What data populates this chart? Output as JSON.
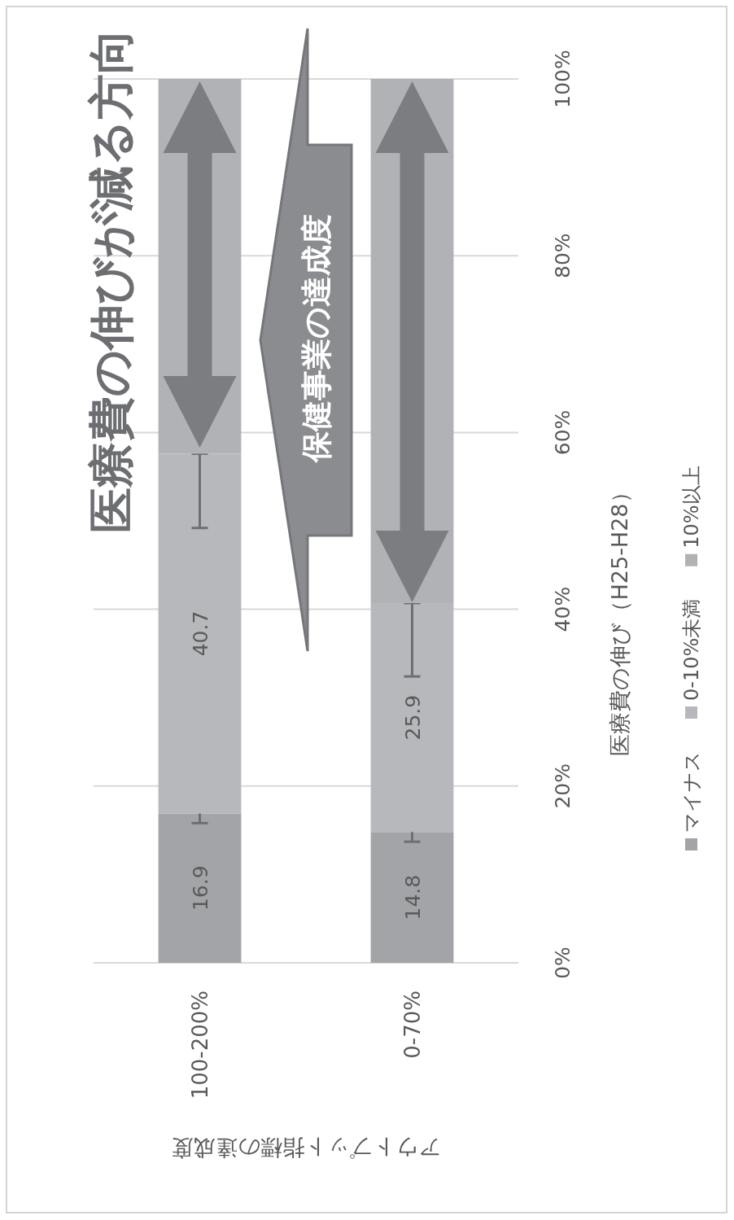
{
  "chart_data": {
    "type": "bar",
    "stacked": true,
    "categories": [
      "100-200%",
      "0-70%"
    ],
    "series": [
      {
        "name": "マイナス",
        "color": "#a3a4a7",
        "values": [
          16.9,
          14.8
        ],
        "value_labels": [
          "16.9",
          "14.8"
        ],
        "errors": [
          1.1,
          1.1
        ]
      },
      {
        "name": "0-10%未満",
        "color": "#b7b8bb",
        "values": [
          40.7,
          25.9
        ],
        "value_labels": [
          "40.7",
          "25.9"
        ],
        "errors": [
          [
            49.2,
            57.6
          ],
          [
            32.4,
            40.7
          ]
        ]
      },
      {
        "name": "10%以上",
        "color": "#b1b2b5",
        "values": [
          42.4,
          59.3
        ]
      }
    ],
    "ylim": [
      0,
      100
    ],
    "yticks": [
      {
        "value": 0,
        "label": "0%"
      },
      {
        "value": 20,
        "label": "20%"
      },
      {
        "value": 40,
        "label": "40%"
      },
      {
        "value": 60,
        "label": "60%"
      },
      {
        "value": 80,
        "label": "80%"
      },
      {
        "value": 100,
        "label": "100%"
      }
    ],
    "ylabel": "医療費の伸び（H25-H28）",
    "xlabel": "アウトプット指標の達成度",
    "legend": "right",
    "grid": "y",
    "annotations": [
      "医療費の伸びが減る方向",
      "保健事業の達成度"
    ]
  }
}
